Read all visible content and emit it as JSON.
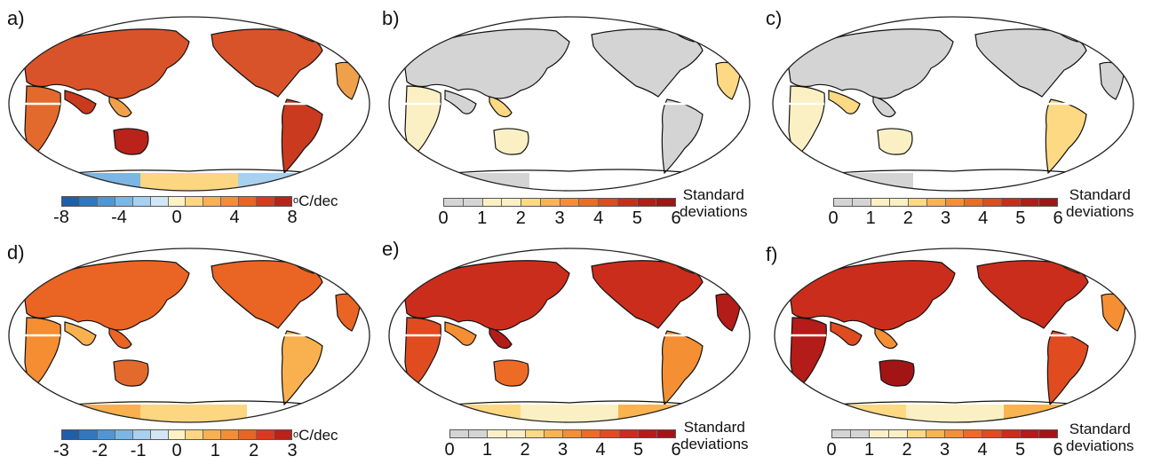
{
  "panels": [
    {
      "label": "a)",
      "type": "trend",
      "colorbar": "trend8"
    },
    {
      "label": "b)",
      "type": "sd",
      "colorbar": "sd"
    },
    {
      "label": "c)",
      "type": "sd",
      "colorbar": "sd"
    },
    {
      "label": "d)",
      "type": "trend",
      "colorbar": "trend3"
    },
    {
      "label": "e)",
      "type": "sd",
      "colorbar": "sd"
    },
    {
      "label": "f)",
      "type": "sd",
      "colorbar": "sd"
    }
  ],
  "colorbars": {
    "trend8": {
      "ticks": [
        "-8",
        "-4",
        "0",
        "4",
        "8"
      ],
      "unit_sup": "o",
      "unit": "C/dec",
      "colors": [
        "#1f5ea8",
        "#2f78c0",
        "#4f97d4",
        "#7bb6e4",
        "#a8d0ef",
        "#d2e7f6",
        "#fdf1c6",
        "#fcd680",
        "#f9b14f",
        "#f58d32",
        "#ea6424",
        "#d73b1d",
        "#b9231a"
      ]
    },
    "trend3": {
      "ticks": [
        "-3",
        "-2",
        "-1",
        "0",
        "1",
        "2",
        "3"
      ],
      "unit_sup": "o",
      "unit": "C/dec",
      "colors": [
        "#1f5ea8",
        "#2f78c0",
        "#4f97d4",
        "#7bb6e4",
        "#a8d0ef",
        "#d2e7f6",
        "#fdf1c6",
        "#fcd680",
        "#f9b14f",
        "#f58d32",
        "#ea6424",
        "#d73b1d",
        "#b9231a"
      ]
    },
    "sd": {
      "ticks": [
        "0",
        "1",
        "2",
        "3",
        "4",
        "5",
        "6"
      ],
      "label_line1": "Standard",
      "label_line2": "deviations",
      "colors": [
        "#d4d4d4",
        "#d4d4d4",
        "#fbf0c4",
        "#fbf0c4",
        "#fcd982",
        "#f9b450",
        "#f58f33",
        "#ee6b26",
        "#e04b20",
        "#cb2d1c",
        "#b31c18",
        "#a31515"
      ]
    }
  },
  "map_fields": {
    "a": {
      "land": [
        "#d9532a",
        "#e26a2c",
        "#c93a1f",
        "#f0a04a",
        "#b9231a"
      ],
      "ocean_lat": "#c93a1f",
      "antarctica": [
        "#7bb6e4",
        "#fcd680",
        "#a8d0ef"
      ],
      "greenland": "#f58d32"
    },
    "b": {
      "land": [
        "#d4d4d4",
        "#fbf0c4",
        "#d4d4d4",
        "#fcd982",
        "#fbf0c4"
      ],
      "antarctica": [
        "#d4d4d4"
      ],
      "greenland": "#d4d4d4"
    },
    "c": {
      "land": [
        "#d4d4d4",
        "#fbf0c4",
        "#fcd982",
        "#d4d4d4",
        "#fbf0c4"
      ],
      "antarctica": [
        "#d4d4d4"
      ],
      "greenland": "#d4d4d4"
    },
    "d": {
      "land": [
        "#ea6424",
        "#f58d32",
        "#f9b14f",
        "#ea6424",
        "#e26a2c"
      ],
      "antarctica": [
        "#f9b14f",
        "#fcd680"
      ],
      "greenland": "#f9b14f"
    },
    "e": {
      "land": [
        "#cb2d1c",
        "#e04b20",
        "#f58f33",
        "#b31c18",
        "#ee6b26"
      ],
      "antarctica": [
        "#fcd982",
        "#fbf0c4",
        "#f9b450"
      ],
      "greenland": "#f58f33"
    },
    "f": {
      "land": [
        "#cb2d1c",
        "#b31c18",
        "#e04b20",
        "#f58f33",
        "#a31515"
      ],
      "antarctica": [
        "#fcd982",
        "#fbf0c4",
        "#f9b450"
      ],
      "greenland": "#f58f33"
    }
  }
}
